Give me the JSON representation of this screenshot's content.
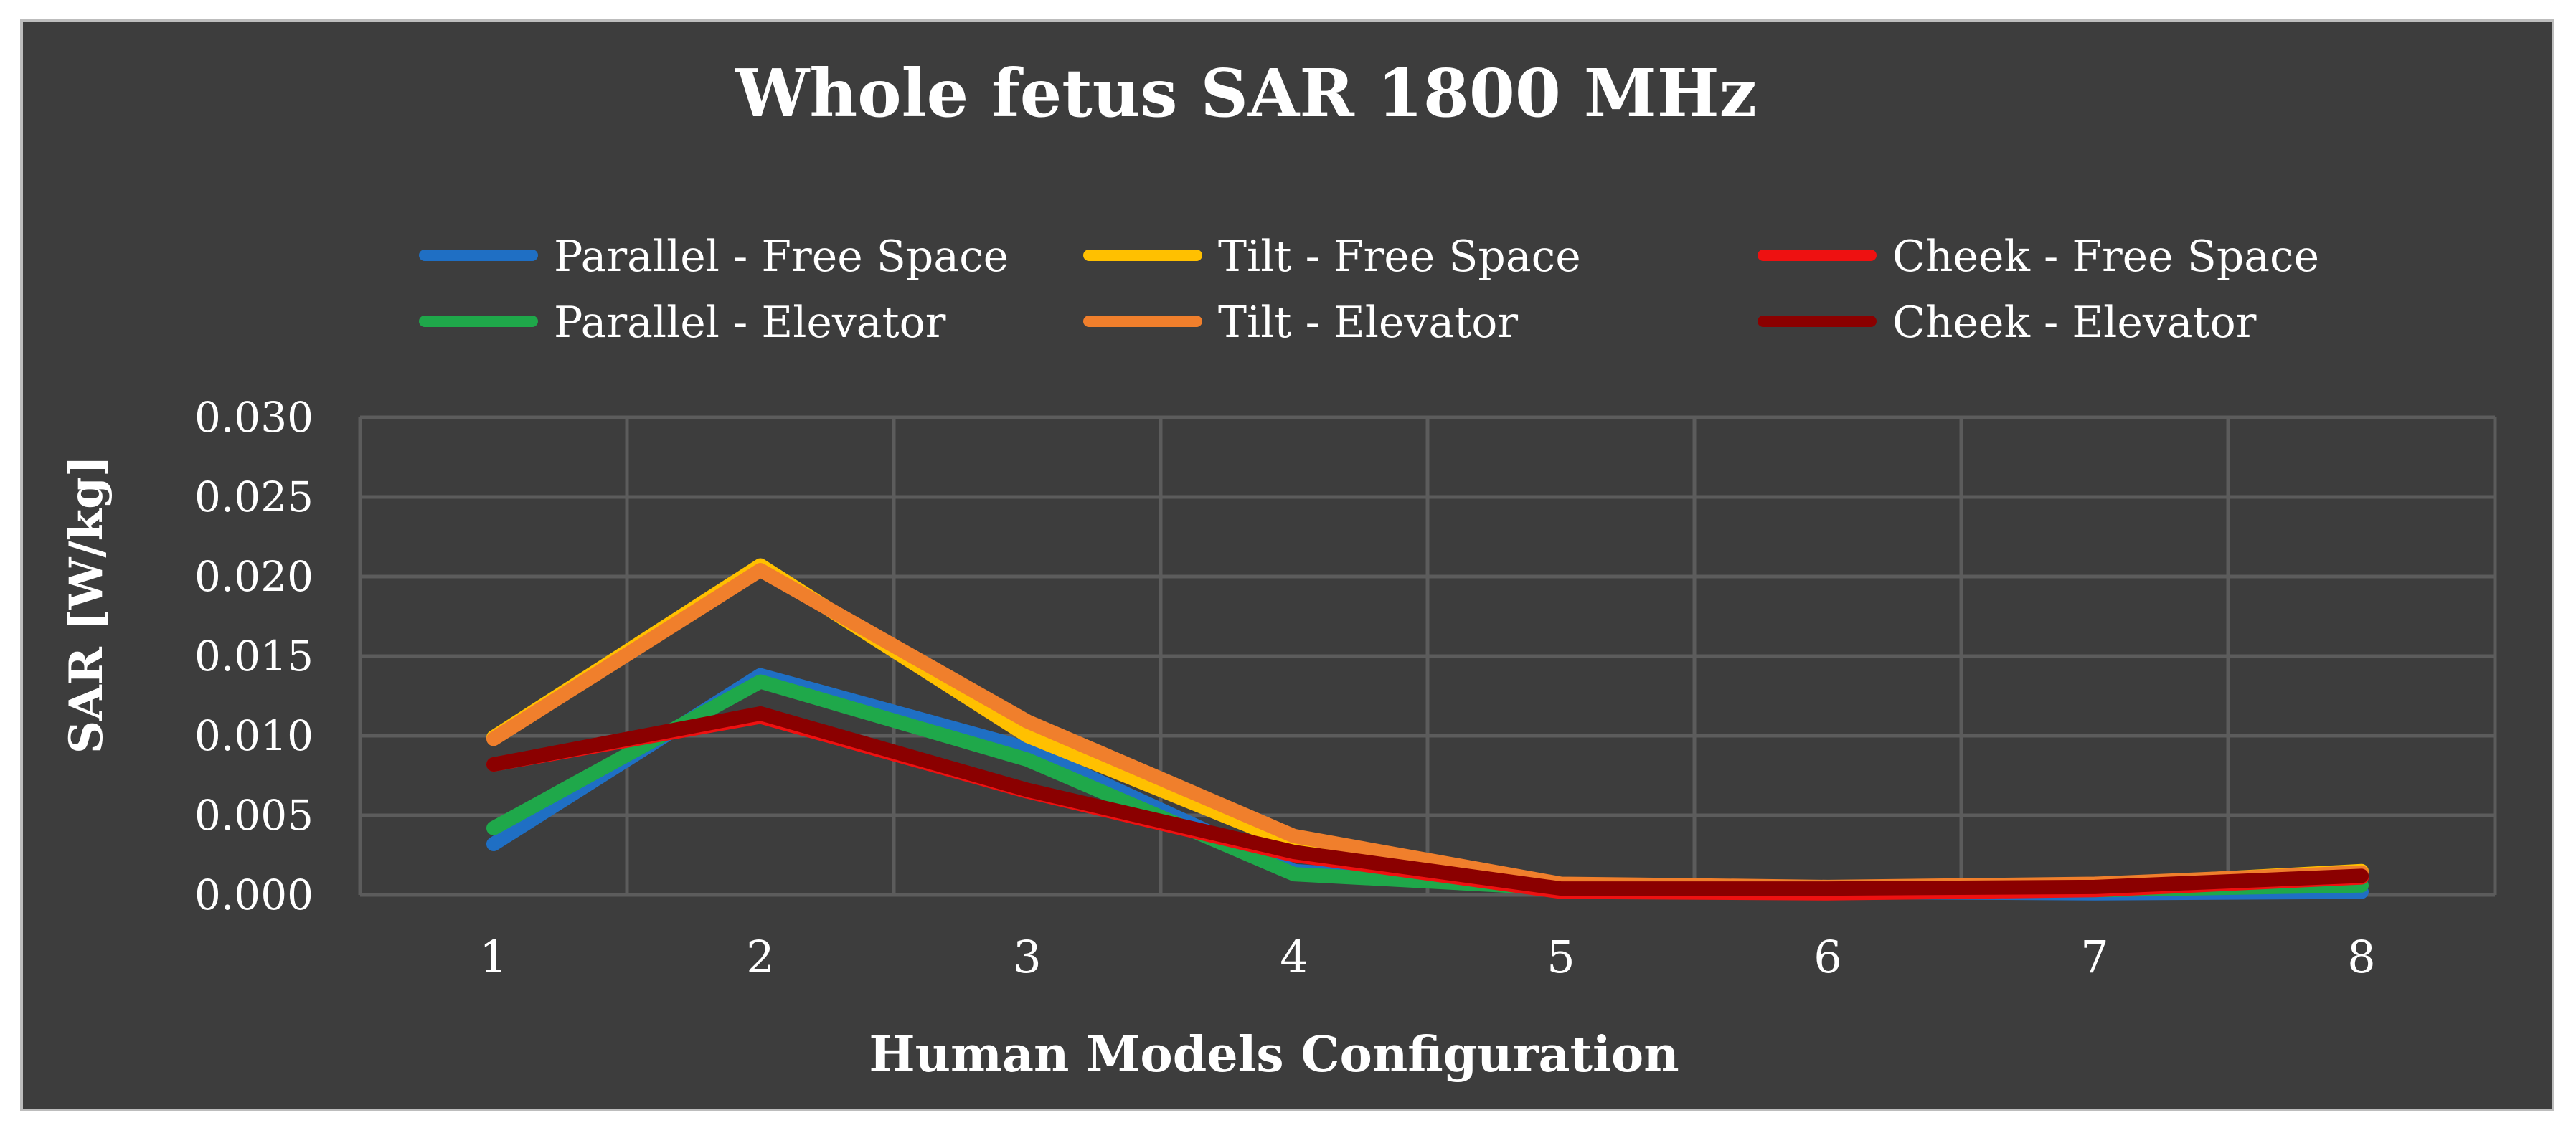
{
  "chart_data": {
    "type": "line",
    "title": "Whole fetus SAR 1800 MHz",
    "xlabel": "Human Models Configuration",
    "ylabel": "SAR [W/kg]",
    "x": [
      "1",
      "2",
      "3",
      "4",
      "5",
      "6",
      "7",
      "8"
    ],
    "ylim": [
      0,
      0.03
    ],
    "yticks": [
      "0.000",
      "0.005",
      "0.010",
      "0.015",
      "0.020",
      "0.025",
      "0.030"
    ],
    "grid": true,
    "legend_position": "top",
    "series": [
      {
        "name": "Parallel  - Free Space",
        "color": "#1f6fc4",
        "values": [
          0.0032,
          0.0138,
          0.0092,
          0.0015,
          0.0004,
          0.0002,
          0.0001,
          0.0002
        ]
      },
      {
        "name": "Parallel - Elevator",
        "color": "#1fa84a",
        "values": [
          0.0042,
          0.0134,
          0.0085,
          0.0013,
          0.0004,
          0.0003,
          0.0003,
          0.0006
        ]
      },
      {
        "name": "Tilt  - Free Space",
        "color": "#ffc000",
        "values": [
          0.0099,
          0.0207,
          0.01,
          0.0032,
          0.0006,
          0.0004,
          0.0006,
          0.0015
        ]
      },
      {
        "name": "Tilt - Elevator",
        "color": "#f07f2c",
        "values": [
          0.0098,
          0.0204,
          0.0109,
          0.0037,
          0.0007,
          0.0005,
          0.0007,
          0.0014
        ]
      },
      {
        "name": "Cheek - Free Space",
        "color": "#ee1111",
        "values": [
          0.0082,
          0.0112,
          0.0065,
          0.0025,
          0.0002,
          0.0001,
          0.0003,
          0.0011
        ]
      },
      {
        "name": "Cheek - Elevator",
        "color": "#8b0000",
        "values": [
          0.0082,
          0.0114,
          0.0066,
          0.0027,
          0.0004,
          0.0004,
          0.0005,
          0.0012
        ]
      }
    ]
  }
}
